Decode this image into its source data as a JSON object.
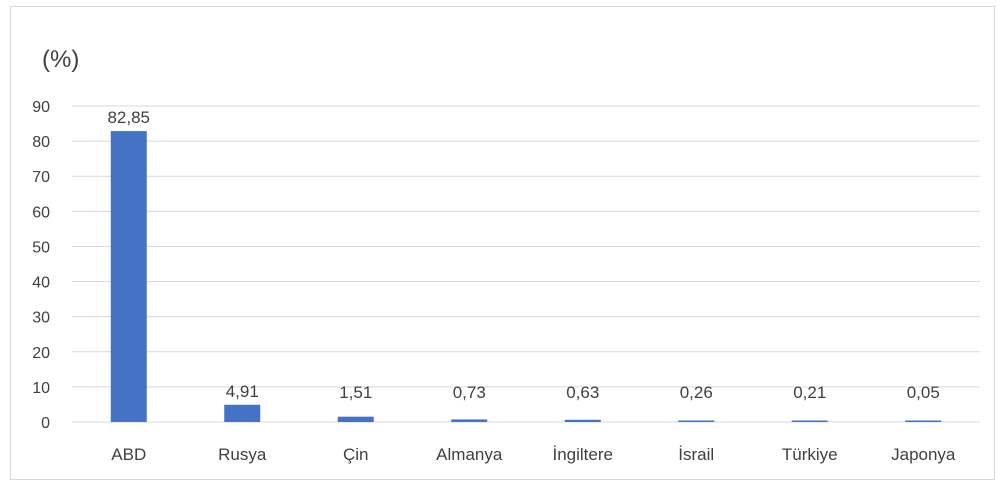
{
  "chart_data": {
    "type": "bar",
    "ylabel": "(%)",
    "categories": [
      "ABD",
      "Rusya",
      "Çin",
      "Almanya",
      "İngiltere",
      "İsrail",
      "Türkiye",
      "Japonya"
    ],
    "values": [
      82.85,
      4.91,
      1.51,
      0.73,
      0.63,
      0.26,
      0.21,
      0.05
    ],
    "data_labels": [
      "82,85",
      "4,91",
      "1,51",
      "0,73",
      "0,63",
      "0,26",
      "0,21",
      "0,05"
    ],
    "ylim": [
      0,
      90
    ],
    "yticks": [
      0,
      10,
      20,
      30,
      40,
      50,
      60,
      70,
      80,
      90
    ],
    "grid": true,
    "bar_color": "#4472c4",
    "grid_color": "#d9d9d9",
    "text_color": "#404040"
  }
}
